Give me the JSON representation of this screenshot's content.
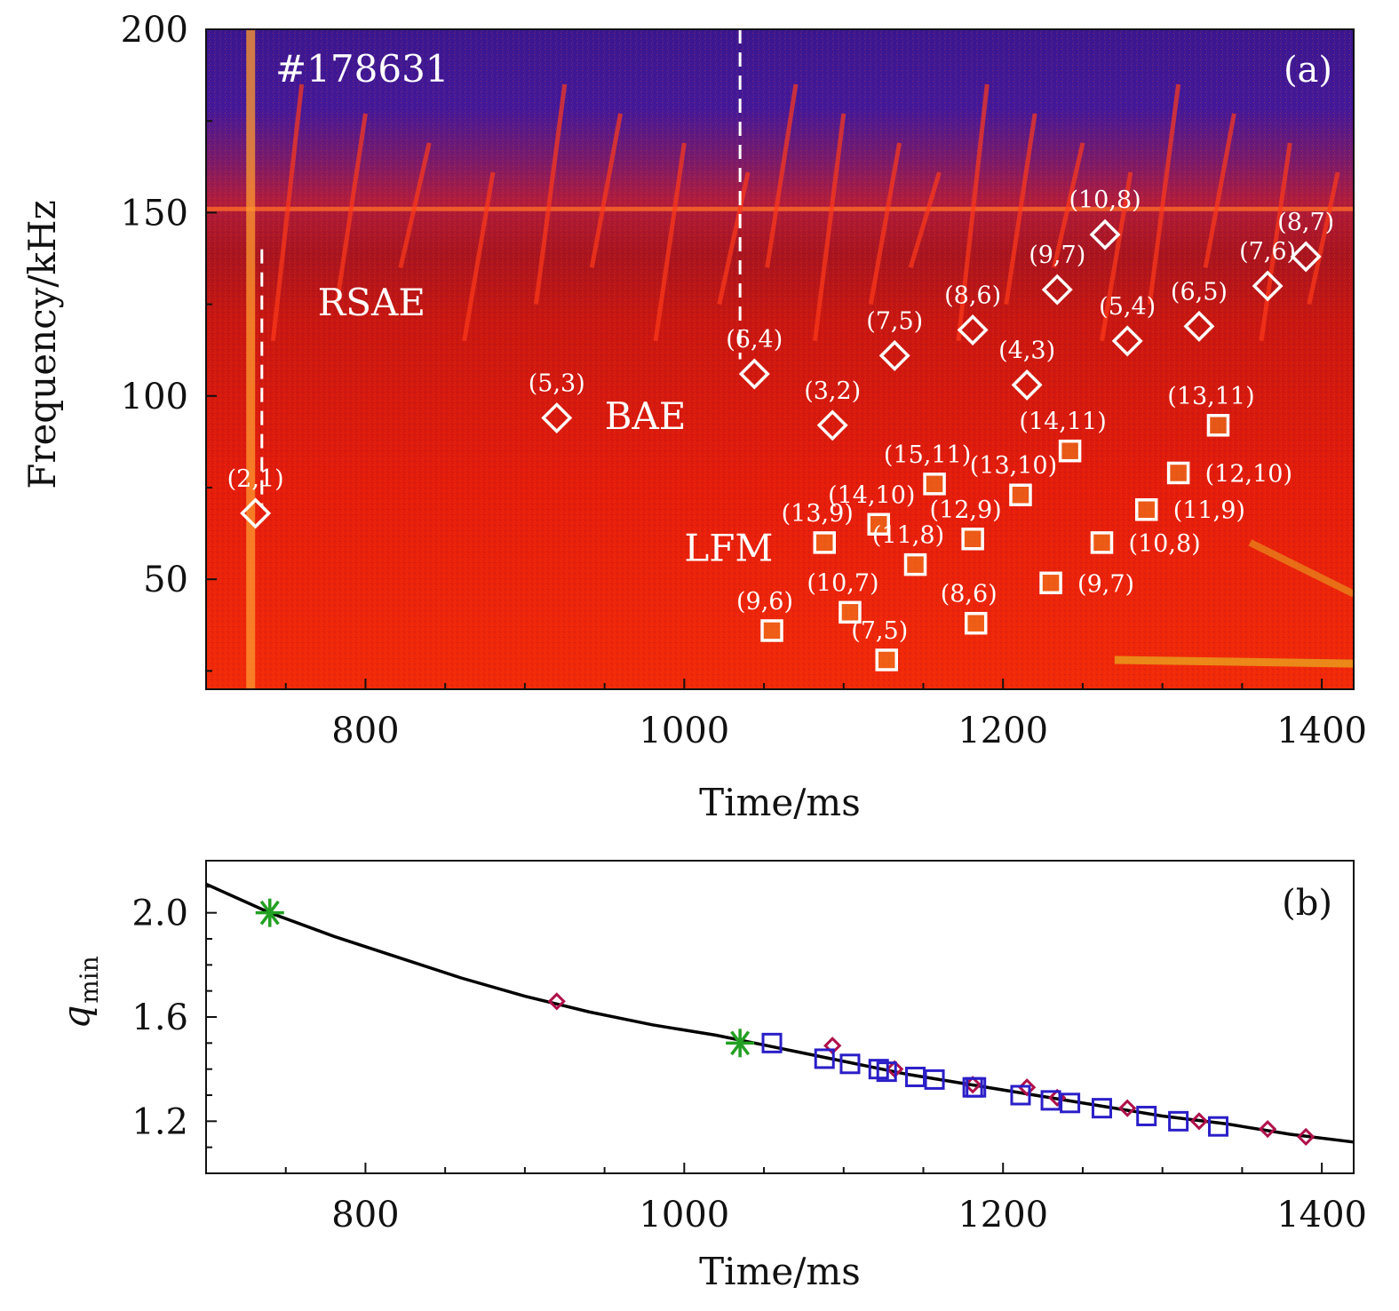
{
  "chart_data": [
    {
      "panel": "(a)",
      "type": "heatmap",
      "shot_label": "#178631",
      "xlabel": "Time/ms",
      "ylabel": "Frequency/kHz",
      "xlim": [
        700,
        1420
      ],
      "ylim": [
        20,
        200
      ],
      "xticks": [
        800,
        1000,
        1200,
        1400
      ],
      "yticks": [
        50,
        100,
        150,
        200
      ],
      "colors": {
        "background_low": "#e01808",
        "background_high": "#34188a",
        "line": "#ff6a28",
        "marker": "#ffffff"
      },
      "dashed_lines": [
        {
          "x": 735,
          "y_from": 70,
          "y_to": 140
        },
        {
          "x": 1035,
          "y_from": 110,
          "y_to": 200
        }
      ],
      "region_labels": [
        {
          "text": "RSAE",
          "x": 770,
          "y": 122
        },
        {
          "text": "BAE",
          "x": 950,
          "y": 91
        },
        {
          "text": "LFM",
          "x": 1000,
          "y": 55
        }
      ],
      "diamonds": [
        {
          "label": "(2,1)",
          "t": 731,
          "f": 68
        },
        {
          "label": "(5,3)",
          "t": 920,
          "f": 94
        },
        {
          "label": "(6,4)",
          "t": 1044,
          "f": 106
        },
        {
          "label": "(3,2)",
          "t": 1093,
          "f": 92
        },
        {
          "label": "(7,5)",
          "t": 1132,
          "f": 111
        },
        {
          "label": "(8,6)",
          "t": 1181,
          "f": 118
        },
        {
          "label": "(4,3)",
          "t": 1215,
          "f": 103
        },
        {
          "label": "(9,7)",
          "t": 1234,
          "f": 129
        },
        {
          "label": "(10,8)",
          "t": 1264,
          "f": 144
        },
        {
          "label": "(5,4)",
          "t": 1278,
          "f": 115
        },
        {
          "label": "(6,5)",
          "t": 1323,
          "f": 119
        },
        {
          "label": "(7,6)",
          "t": 1366,
          "f": 130
        },
        {
          "label": "(8,7)",
          "t": 1390,
          "f": 138
        }
      ],
      "squares": [
        {
          "label": "(9,6)",
          "t": 1055,
          "f": 36
        },
        {
          "label": "(13,9)",
          "t": 1088,
          "f": 60
        },
        {
          "label": "(10,7)",
          "t": 1104,
          "f": 41
        },
        {
          "label": "(14,10)",
          "t": 1122,
          "f": 65
        },
        {
          "label": "(7,5)",
          "t": 1127,
          "f": 28
        },
        {
          "label": "(11,8)",
          "t": 1145,
          "f": 54
        },
        {
          "label": "(15,11)",
          "t": 1157,
          "f": 76
        },
        {
          "label": "(12,9)",
          "t": 1181,
          "f": 61
        },
        {
          "label": "(8,6)",
          "t": 1183,
          "f": 38
        },
        {
          "label": "(13,10)",
          "t": 1211,
          "f": 73
        },
        {
          "label": "(9,7)",
          "t": 1230,
          "f": 49
        },
        {
          "label": "(14,11)",
          "t": 1242,
          "f": 85
        },
        {
          "label": "(10,8)",
          "t": 1262,
          "f": 60
        },
        {
          "label": "(11,9)",
          "t": 1290,
          "f": 69
        },
        {
          "label": "(12,10)",
          "t": 1310,
          "f": 79
        },
        {
          "label": "(13,11)",
          "t": 1335,
          "f": 92
        }
      ]
    },
    {
      "panel": "(b)",
      "type": "scatter",
      "xlabel": "Time/ms",
      "ylabel": "q",
      "ylabel_sub": "min",
      "xlim": [
        700,
        1420
      ],
      "ylim": [
        1.0,
        2.2
      ],
      "xticks": [
        800,
        1000,
        1200,
        1400
      ],
      "yticks": [
        "1.2",
        "1.6",
        "2.0"
      ],
      "colors": {
        "curve": "#000000",
        "diamond": "#b0104a",
        "square": "#2a1ec8",
        "star": "#22a022"
      },
      "curve": {
        "t": [
          700,
          740,
          780,
          820,
          860,
          900,
          940,
          980,
          1020,
          1060,
          1100,
          1140,
          1180,
          1220,
          1260,
          1300,
          1340,
          1380,
          1420
        ],
        "q": [
          2.11,
          2.0,
          1.91,
          1.83,
          1.75,
          1.68,
          1.62,
          1.57,
          1.53,
          1.48,
          1.43,
          1.38,
          1.34,
          1.3,
          1.26,
          1.22,
          1.19,
          1.15,
          1.12
        ]
      },
      "diamonds": [
        {
          "t": 920,
          "q": 1.66
        },
        {
          "t": 1093,
          "q": 1.49
        },
        {
          "t": 1132,
          "q": 1.4
        },
        {
          "t": 1181,
          "q": 1.34
        },
        {
          "t": 1215,
          "q": 1.33
        },
        {
          "t": 1234,
          "q": 1.29
        },
        {
          "t": 1278,
          "q": 1.25
        },
        {
          "t": 1323,
          "q": 1.2
        },
        {
          "t": 1366,
          "q": 1.17
        },
        {
          "t": 1390,
          "q": 1.14
        }
      ],
      "squares": [
        {
          "t": 1055,
          "q": 1.5
        },
        {
          "t": 1088,
          "q": 1.44
        },
        {
          "t": 1104,
          "q": 1.42
        },
        {
          "t": 1122,
          "q": 1.4
        },
        {
          "t": 1127,
          "q": 1.39
        },
        {
          "t": 1145,
          "q": 1.37
        },
        {
          "t": 1157,
          "q": 1.36
        },
        {
          "t": 1181,
          "q": 1.33
        },
        {
          "t": 1183,
          "q": 1.33
        },
        {
          "t": 1211,
          "q": 1.3
        },
        {
          "t": 1230,
          "q": 1.28
        },
        {
          "t": 1242,
          "q": 1.27
        },
        {
          "t": 1262,
          "q": 1.25
        },
        {
          "t": 1290,
          "q": 1.22
        },
        {
          "t": 1310,
          "q": 1.2
        },
        {
          "t": 1335,
          "q": 1.18
        }
      ],
      "stars": [
        {
          "t": 740,
          "q": 2.0
        },
        {
          "t": 1035,
          "q": 1.5
        }
      ]
    }
  ]
}
